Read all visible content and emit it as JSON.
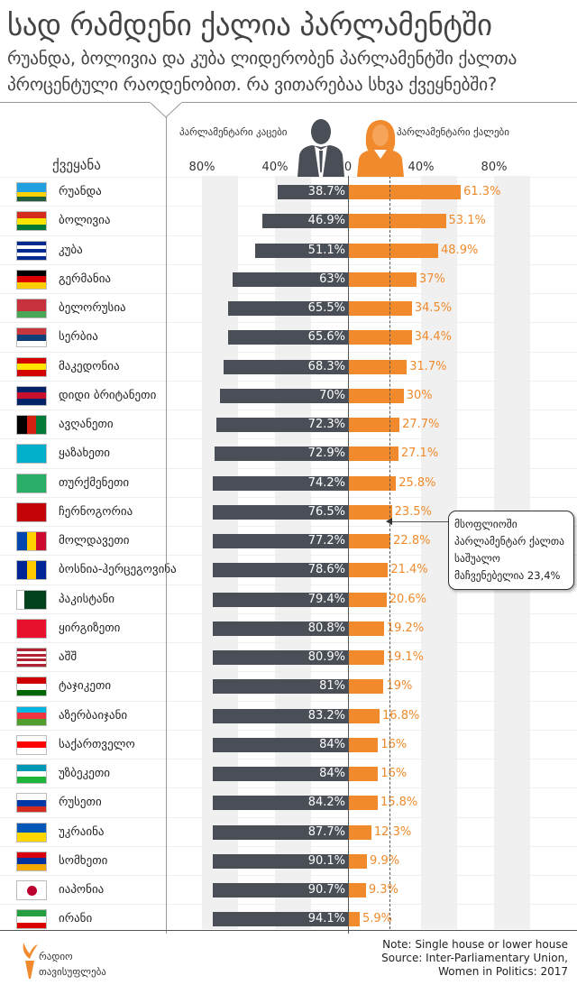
{
  "title": "სად რამდენი ქალია პარლამენტში",
  "subtitle": "რუანდა, ბოლივია და კუბა ლიდერობენ პარლამენტში ქალთა პროცენტული რაოდენობით. რა ვითარებაა სხვა ქვეყნებში?",
  "colors": {
    "men": "#4a4f57",
    "women": "#f08a2c"
  },
  "chart_data": {
    "type": "bar",
    "orientation": "horizontal-diverging",
    "column_header": "ქვეყანა",
    "left_label": "პარლამენტარი კაცები",
    "right_label": "პარლამენტარი ქალები",
    "ticks": {
      "left": [
        "80%",
        "40%"
      ],
      "zero": "0",
      "right": [
        "40%",
        "80%"
      ]
    },
    "xlim": [
      0,
      80
    ],
    "categories": [
      "რუანდა",
      "ბოლივია",
      "კუბა",
      "გერმანია",
      "ბელორუსია",
      "სერბია",
      "მაკედონია",
      "დიდი ბრიტანეთი",
      "ავღანეთი",
      "ყაზახეთი",
      "თურქმენეთი",
      "ჩერნოგორია",
      "მოლდავეთი",
      "ბოსნია-ჰერცეგოვინა",
      "პაკისტანი",
      "ყირგიზეთი",
      "აშშ",
      "ტაჯიკეთი",
      "აზერბაიჯანი",
      "საქართველო",
      "უზბეკეთი",
      "რუსეთი",
      "უკრაინა",
      "სომხეთი",
      "იაპონია",
      "ირანი"
    ],
    "series": [
      {
        "name": "პარლამენტარი კაცები",
        "values": [
          38.7,
          46.9,
          51.1,
          63,
          65.5,
          65.6,
          68.3,
          70,
          72.3,
          72.9,
          74.2,
          76.5,
          77.2,
          78.6,
          79.4,
          80.8,
          80.9,
          81,
          83.2,
          84,
          84,
          84.2,
          87.7,
          90.1,
          90.7,
          94.1
        ]
      },
      {
        "name": "პარლამენტარი ქალები",
        "values": [
          61.3,
          53.1,
          48.9,
          37,
          34.5,
          34.4,
          31.7,
          30,
          27.7,
          27.1,
          25.8,
          23.5,
          22.8,
          21.4,
          20.6,
          19.2,
          19.1,
          19,
          16.8,
          16,
          16,
          15.8,
          12.3,
          9.9,
          9.3,
          5.9
        ]
      }
    ],
    "reference_line": {
      "value": 23.4,
      "annotation": [
        "მსოფლიოში",
        "პარლამენტარ ქალთა",
        "საშუალო",
        "მაჩვენებელია 23,4%"
      ]
    }
  },
  "flags": [
    [
      "v",
      "#20a0de",
      "#20a0de",
      "#fad201",
      "#20603d"
    ],
    [
      "v",
      "#d52b1e",
      "#f9e300",
      "#007934"
    ],
    [
      "v",
      "#002a8f",
      "#fff",
      "#002a8f",
      "#fff",
      "#002a8f"
    ],
    [
      "v",
      "#000",
      "#dd0000",
      "#ffce00"
    ],
    [
      "v",
      "#c8313e",
      "#c8313e",
      "#4aa657"
    ],
    [
      "v",
      "#c6363c",
      "#0c4076",
      "#fff"
    ],
    [
      "v",
      "#d20000",
      "#ffe600",
      "#d20000"
    ],
    [
      "v",
      "#012169",
      "#c8102e",
      "#012169"
    ],
    [
      "h",
      "#000",
      "#d32011",
      "#007a36"
    ],
    [
      "v",
      "#00afca",
      "#00afca"
    ],
    [
      "v",
      "#28ae66",
      "#28ae66"
    ],
    [
      "v",
      "#c40308",
      "#c40308"
    ],
    [
      "h",
      "#0046ae",
      "#ffd200",
      "#cc092f"
    ],
    [
      "h",
      "#002395",
      "#fecb00",
      "#002395"
    ],
    [
      "h",
      "#fff",
      "#01411c",
      "#01411c",
      "#01411c"
    ],
    [
      "v",
      "#e8112d",
      "#e8112d"
    ],
    [
      "v",
      "#b22234",
      "#fff",
      "#b22234",
      "#fff",
      "#b22234",
      "#fff",
      "#b22234"
    ],
    [
      "v",
      "#cc0000",
      "#fff",
      "#006600"
    ],
    [
      "v",
      "#00b5e2",
      "#ef3340",
      "#509e2f"
    ],
    [
      "v",
      "#fff",
      "#ff0000",
      "#fff"
    ],
    [
      "v",
      "#0099b5",
      "#fff",
      "#1eb53a"
    ],
    [
      "v",
      "#fff",
      "#0039a6",
      "#d52b1e"
    ],
    [
      "v",
      "#0057b7",
      "#ffd700"
    ],
    [
      "v",
      "#d90012",
      "#0033a0",
      "#f2a800"
    ],
    [
      "v",
      "#fff",
      "#fff"
    ],
    [
      "v",
      "#239f40",
      "#fff",
      "#da0000"
    ]
  ],
  "footer": {
    "note": "Note: Single house or lower house",
    "source1": "Source: Inter-Parliamentary Union,",
    "source2": "Women in Politics: 2017",
    "logo_line1": "რადიო",
    "logo_line2": "თავისუფლება"
  }
}
